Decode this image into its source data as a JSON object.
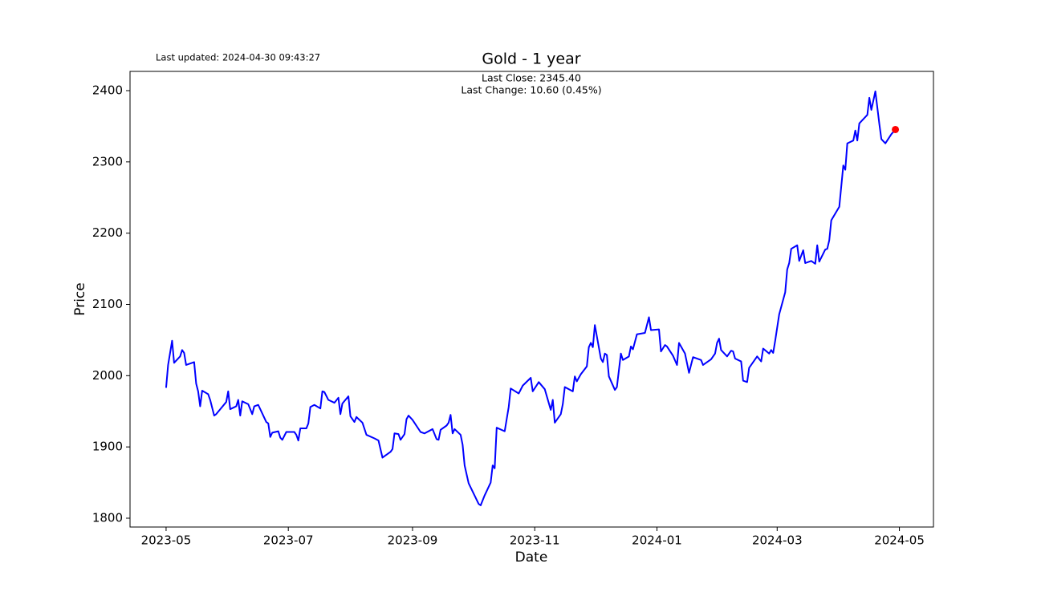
{
  "chart_data": {
    "type": "line",
    "title": "Gold - 1 year",
    "updated": "Last updated: 2024-04-30 09:43:27",
    "annotations": [
      "Last Close: 2345.40",
      "Last Change: 10.60 (0.45%)"
    ],
    "xlabel": "Date",
    "ylabel": "Price",
    "x": [
      "2023-05-01",
      "2023-05-02",
      "2023-05-04",
      "2023-05-05",
      "2023-05-08",
      "2023-05-09",
      "2023-05-10",
      "2023-05-11",
      "2023-05-15",
      "2023-05-16",
      "2023-05-17",
      "2023-05-18",
      "2023-05-19",
      "2023-05-22",
      "2023-05-23",
      "2023-05-25",
      "2023-05-26",
      "2023-05-31",
      "2023-06-01",
      "2023-06-02",
      "2023-06-05",
      "2023-06-06",
      "2023-06-07",
      "2023-06-08",
      "2023-06-11",
      "2023-06-13",
      "2023-06-14",
      "2023-06-16",
      "2023-06-20",
      "2023-06-21",
      "2023-06-22",
      "2023-06-23",
      "2023-06-26",
      "2023-06-27",
      "2023-06-28",
      "2023-06-30",
      "2023-07-04",
      "2023-07-05",
      "2023-07-06",
      "2023-07-07",
      "2023-07-10",
      "2023-07-11",
      "2023-07-12",
      "2023-07-14",
      "2023-07-17",
      "2023-07-18",
      "2023-07-19",
      "2023-07-21",
      "2023-07-24",
      "2023-07-26",
      "2023-07-27",
      "2023-07-28",
      "2023-07-31",
      "2023-08-01",
      "2023-08-03",
      "2023-08-04",
      "2023-08-07",
      "2023-08-09",
      "2023-08-13",
      "2023-08-15",
      "2023-08-17",
      "2023-08-21",
      "2023-08-22",
      "2023-08-23",
      "2023-08-25",
      "2023-08-26",
      "2023-08-28",
      "2023-08-29",
      "2023-08-30",
      "2023-09-01",
      "2023-09-05",
      "2023-09-07",
      "2023-09-11",
      "2023-09-13",
      "2023-09-14",
      "2023-09-15",
      "2023-09-18",
      "2023-09-19",
      "2023-09-20",
      "2023-09-21",
      "2023-09-22",
      "2023-09-25",
      "2023-09-26",
      "2023-09-27",
      "2023-09-29",
      "2023-10-04",
      "2023-10-05",
      "2023-10-07",
      "2023-10-10",
      "2023-10-11",
      "2023-10-12",
      "2023-10-13",
      "2023-10-17",
      "2023-10-19",
      "2023-10-20",
      "2023-10-24",
      "2023-10-26",
      "2023-10-30",
      "2023-10-31",
      "2023-11-03",
      "2023-11-06",
      "2023-11-09",
      "2023-11-10",
      "2023-11-11",
      "2023-11-14",
      "2023-11-15",
      "2023-11-16",
      "2023-11-20",
      "2023-11-21",
      "2023-11-22",
      "2023-11-24",
      "2023-11-27",
      "2023-11-28",
      "2023-11-29",
      "2023-11-30",
      "2023-12-01",
      "2023-12-04",
      "2023-12-05",
      "2023-12-06",
      "2023-12-07",
      "2023-12-08",
      "2023-12-11",
      "2023-12-12",
      "2023-12-14",
      "2023-12-15",
      "2023-12-18",
      "2023-12-19",
      "2023-12-20",
      "2023-12-22",
      "2023-12-26",
      "2023-12-28",
      "2023-12-29",
      "2024-01-02",
      "2024-01-03",
      "2024-01-05",
      "2024-01-06",
      "2024-01-09",
      "2024-01-11",
      "2024-01-12",
      "2024-01-15",
      "2024-01-17",
      "2024-01-19",
      "2024-01-23",
      "2024-01-24",
      "2024-01-28",
      "2024-01-30",
      "2024-01-31",
      "2024-02-01",
      "2024-02-02",
      "2024-02-05",
      "2024-02-07",
      "2024-02-08",
      "2024-02-09",
      "2024-02-12",
      "2024-02-13",
      "2024-02-15",
      "2024-02-16",
      "2024-02-20",
      "2024-02-22",
      "2024-02-23",
      "2024-02-26",
      "2024-02-27",
      "2024-02-28",
      "2024-02-29",
      "2024-03-02",
      "2024-03-05",
      "2024-03-06",
      "2024-03-07",
      "2024-03-08",
      "2024-03-11",
      "2024-03-12",
      "2024-03-14",
      "2024-03-15",
      "2024-03-18",
      "2024-03-20",
      "2024-03-21",
      "2024-03-22",
      "2024-03-25",
      "2024-03-26",
      "2024-03-27",
      "2024-03-28",
      "2024-04-01",
      "2024-04-03",
      "2024-04-04",
      "2024-04-05",
      "2024-04-08",
      "2024-04-09",
      "2024-04-10",
      "2024-04-11",
      "2024-04-15",
      "2024-04-16",
      "2024-04-17",
      "2024-04-19",
      "2024-04-21",
      "2024-04-22",
      "2024-04-24",
      "2024-04-27",
      "2024-04-29"
    ],
    "series": [
      {
        "color": "#0000ff",
        "values": [
          1983,
          2015,
          2049,
          2018,
          2027,
          2036,
          2032,
          2015,
          2019,
          1989,
          1978,
          1957,
          1979,
          1974,
          1966,
          1944,
          1946,
          1963,
          1978,
          1953,
          1957,
          1966,
          1944,
          1964,
          1960,
          1946,
          1957,
          1959,
          1935,
          1933,
          1914,
          1920,
          1922,
          1913,
          1910,
          1921,
          1921,
          1917,
          1909,
          1926,
          1926,
          1933,
          1956,
          1959,
          1954,
          1978,
          1977,
          1966,
          1962,
          1969,
          1946,
          1961,
          1971,
          1943,
          1935,
          1942,
          1934,
          1917,
          1912,
          1909,
          1885,
          1893,
          1897,
          1919,
          1918,
          1910,
          1918,
          1939,
          1944,
          1938,
          1921,
          1919,
          1925,
          1911,
          1910,
          1924,
          1930,
          1934,
          1945,
          1919,
          1925,
          1917,
          1903,
          1874,
          1849,
          1820,
          1818,
          1832,
          1850,
          1874,
          1870,
          1927,
          1922,
          1956,
          1982,
          1975,
          1986,
          1997,
          1978,
          1991,
          1981,
          1952,
          1966,
          1934,
          1946,
          1960,
          1984,
          1978,
          1999,
          1992,
          2002,
          2013,
          2040,
          2046,
          2040,
          2071,
          2024,
          2019,
          2031,
          2029,
          1999,
          1980,
          1984,
          2031,
          2022,
          2027,
          2041,
          2037,
          2058,
          2060,
          2082,
          2064,
          2065,
          2034,
          2043,
          2041,
          2028,
          2015,
          2046,
          2031,
          2004,
          2026,
          2022,
          2015,
          2023,
          2031,
          2046,
          2052,
          2036,
          2027,
          2035,
          2034,
          2024,
          2020,
          1993,
          1991,
          2011,
          2027,
          2020,
          2038,
          2031,
          2036,
          2032,
          2049,
          2086,
          2117,
          2149,
          2158,
          2178,
          2183,
          2161,
          2176,
          2158,
          2161,
          2157,
          2183,
          2160,
          2177,
          2178,
          2190,
          2218,
          2237,
          2295,
          2289,
          2326,
          2330,
          2344,
          2330,
          2354,
          2366,
          2390,
          2373,
          2399,
          2353,
          2332,
          2326,
          2339,
          2345.4
        ]
      }
    ],
    "last_marker_color": "#ff0000",
    "xlim": [
      "2023-04-13",
      "2024-05-18"
    ],
    "xticks": [
      {
        "value": "2023-05-01",
        "label": "2023-05"
      },
      {
        "value": "2023-07-01",
        "label": "2023-07"
      },
      {
        "value": "2023-09-01",
        "label": "2023-09"
      },
      {
        "value": "2023-11-01",
        "label": "2023-11"
      },
      {
        "value": "2024-01-01",
        "label": "2024-01"
      },
      {
        "value": "2024-03-01",
        "label": "2024-03"
      },
      {
        "value": "2024-05-01",
        "label": "2024-05"
      }
    ],
    "ylim": [
      1787.6,
      2427
    ],
    "yticks": [
      1800,
      1900,
      2000,
      2100,
      2200,
      2300,
      2400
    ],
    "grid": false
  }
}
